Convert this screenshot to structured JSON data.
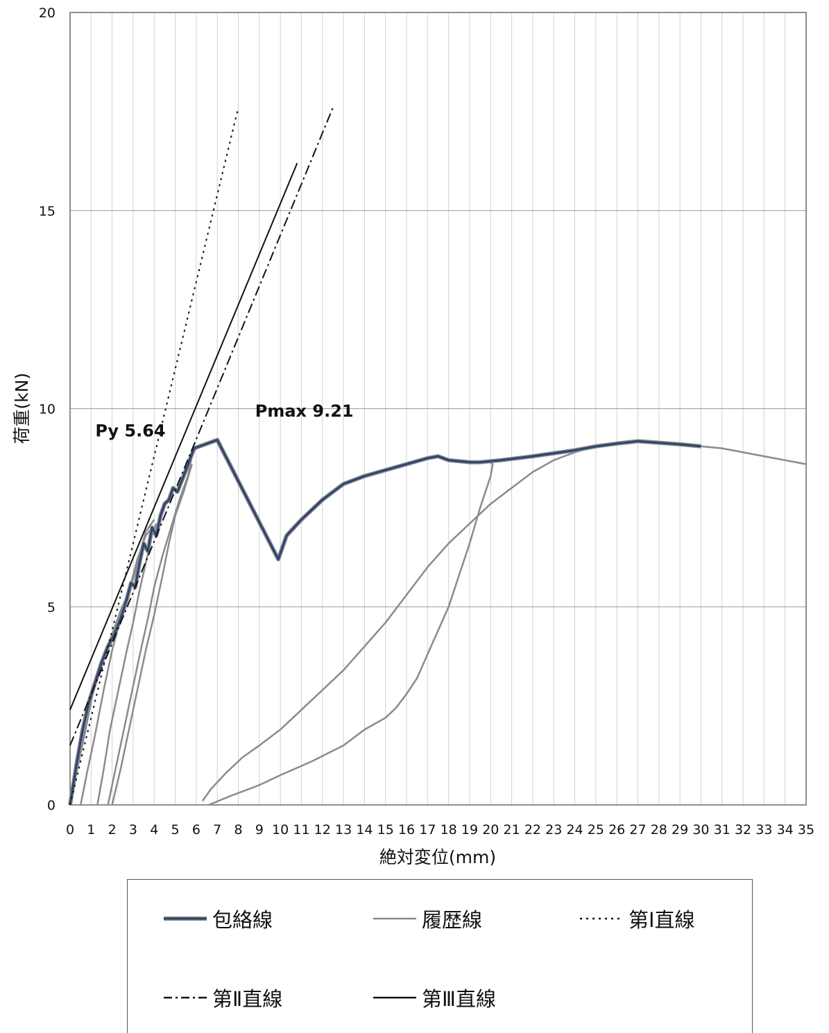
{
  "chart_data": {
    "type": "line",
    "title": "",
    "xlabel": "絶対変位(mm)",
    "ylabel": "荷重(kN)",
    "xlim": [
      0,
      35
    ],
    "ylim": [
      0,
      20
    ],
    "x_ticks": [
      0,
      1,
      2,
      3,
      4,
      5,
      6,
      7,
      8,
      9,
      10,
      11,
      12,
      13,
      14,
      15,
      16,
      17,
      18,
      19,
      20,
      21,
      22,
      23,
      24,
      25,
      26,
      27,
      28,
      29,
      30,
      31,
      32,
      33,
      34,
      35
    ],
    "y_ticks": [
      0,
      5,
      10,
      15,
      20
    ],
    "grid": {
      "horizontal": true,
      "vertical": true
    },
    "legend_position": "bottom",
    "annotations": [
      {
        "text": "Py 5.64",
        "x": 1.2,
        "y": 9.3
      },
      {
        "text": "Pmax 9.21",
        "x": 8.8,
        "y": 9.8
      }
    ],
    "series": [
      {
        "name": "履歴線",
        "style": "solid",
        "color": "#8a8a8a",
        "segments": [
          [
            [
              0,
              0
            ],
            [
              0.3,
              0.8
            ],
            [
              0.7,
              1.8
            ],
            [
              1.0,
              2.6
            ],
            [
              1.3,
              3.3
            ],
            [
              1.6,
              3.8
            ],
            [
              2.0,
              4.3
            ],
            [
              2.4,
              4.9
            ],
            [
              2.8,
              5.4
            ],
            [
              3.0,
              5.7
            ],
            [
              3.3,
              6.3
            ],
            [
              3.6,
              6.9
            ],
            [
              4.0,
              7.2
            ]
          ],
          [
            [
              0.5,
              0
            ],
            [
              0.8,
              0.8
            ],
            [
              1.2,
              1.8
            ],
            [
              1.6,
              2.9
            ],
            [
              2.0,
              3.9
            ],
            [
              2.4,
              4.7
            ],
            [
              2.8,
              5.4
            ],
            [
              3.2,
              6.2
            ],
            [
              3.6,
              6.8
            ],
            [
              3.9,
              7.0
            ]
          ],
          [
            [
              1.3,
              0
            ],
            [
              1.6,
              0.9
            ],
            [
              1.9,
              1.9
            ],
            [
              2.3,
              2.9
            ],
            [
              2.7,
              3.9
            ],
            [
              3.0,
              4.6
            ],
            [
              3.3,
              5.4
            ],
            [
              3.6,
              6.1
            ],
            [
              3.9,
              6.8
            ],
            [
              4.1,
              7.1
            ]
          ],
          [
            [
              1.8,
              0
            ],
            [
              2.2,
              1.0
            ],
            [
              2.6,
              2.0
            ],
            [
              3.0,
              3.0
            ],
            [
              3.4,
              4.0
            ],
            [
              3.7,
              4.7
            ],
            [
              4.0,
              5.5
            ],
            [
              4.4,
              6.3
            ],
            [
              4.8,
              7.0
            ],
            [
              5.2,
              7.7
            ],
            [
              5.6,
              8.3
            ],
            [
              5.8,
              8.8
            ]
          ],
          [
            [
              2.0,
              0
            ],
            [
              2.4,
              0.9
            ],
            [
              2.8,
              1.9
            ],
            [
              3.2,
              2.9
            ],
            [
              3.6,
              3.9
            ],
            [
              4.0,
              4.8
            ],
            [
              4.4,
              5.8
            ],
            [
              4.7,
              6.6
            ],
            [
              5.0,
              7.3
            ],
            [
              5.4,
              7.9
            ],
            [
              5.8,
              8.6
            ]
          ],
          [
            [
              6.3,
              0.1
            ],
            [
              6.7,
              0.4
            ],
            [
              7.4,
              0.8
            ],
            [
              8.2,
              1.2
            ],
            [
              9.0,
              1.5
            ],
            [
              10.0,
              1.9
            ],
            [
              11.0,
              2.4
            ],
            [
              12.0,
              2.9
            ],
            [
              13.0,
              3.4
            ],
            [
              14.0,
              4.0
            ],
            [
              15.0,
              4.6
            ],
            [
              16.0,
              5.3
            ],
            [
              17.0,
              6.0
            ],
            [
              18.0,
              6.6
            ],
            [
              19.0,
              7.1
            ],
            [
              20.0,
              7.6
            ],
            [
              21.0,
              8.0
            ],
            [
              22.0,
              8.4
            ],
            [
              23.0,
              8.7
            ],
            [
              24.0,
              8.9
            ],
            [
              25.0,
              9.05
            ],
            [
              26.0,
              9.15
            ],
            [
              27.0,
              9.2
            ],
            [
              28.0,
              9.15
            ],
            [
              29.0,
              9.1
            ],
            [
              30.0,
              9.05
            ],
            [
              31.0,
              9.0
            ],
            [
              32.0,
              8.9
            ],
            [
              33.0,
              8.8
            ],
            [
              34.0,
              8.7
            ],
            [
              35.0,
              8.6
            ]
          ],
          [
            [
              6.6,
              0
            ],
            [
              7.5,
              0.2
            ],
            [
              9.0,
              0.5
            ],
            [
              10.0,
              0.75
            ],
            [
              11.5,
              1.1
            ],
            [
              13.0,
              1.5
            ],
            [
              14.0,
              1.9
            ],
            [
              15.0,
              2.2
            ],
            [
              15.5,
              2.45
            ],
            [
              16.0,
              2.8
            ],
            [
              16.5,
              3.2
            ],
            [
              17.0,
              3.8
            ],
            [
              17.5,
              4.4
            ],
            [
              18.0,
              5.0
            ],
            [
              18.5,
              5.8
            ],
            [
              19.0,
              6.6
            ],
            [
              19.5,
              7.5
            ],
            [
              20.0,
              8.3
            ],
            [
              20.1,
              8.6
            ],
            [
              19.8,
              8.7
            ]
          ]
        ]
      },
      {
        "name": "包絡線",
        "style": "solid",
        "color": "#2e4470",
        "points": [
          [
            0,
            0
          ],
          [
            0.3,
            1.0
          ],
          [
            0.6,
            1.9
          ],
          [
            0.9,
            2.6
          ],
          [
            1.2,
            3.1
          ],
          [
            1.5,
            3.6
          ],
          [
            1.8,
            4.0
          ],
          [
            2.1,
            4.3
          ],
          [
            2.4,
            4.7
          ],
          [
            2.7,
            5.2
          ],
          [
            2.9,
            5.6
          ],
          [
            3.1,
            5.5
          ],
          [
            3.3,
            6.1
          ],
          [
            3.5,
            6.6
          ],
          [
            3.7,
            6.4
          ],
          [
            3.9,
            7.0
          ],
          [
            4.1,
            6.8
          ],
          [
            4.3,
            7.3
          ],
          [
            4.5,
            7.6
          ],
          [
            4.7,
            7.7
          ],
          [
            4.9,
            8.0
          ],
          [
            5.1,
            7.9
          ],
          [
            5.4,
            8.3
          ],
          [
            5.9,
            9.0
          ],
          [
            7.0,
            9.21
          ],
          [
            9.9,
            6.2
          ],
          [
            10.3,
            6.8
          ],
          [
            11.0,
            7.2
          ],
          [
            12.0,
            7.7
          ],
          [
            13.0,
            8.1
          ],
          [
            14.0,
            8.3
          ],
          [
            15.0,
            8.45
          ],
          [
            16.0,
            8.6
          ],
          [
            17.0,
            8.75
          ],
          [
            17.5,
            8.8
          ],
          [
            18.0,
            8.7
          ],
          [
            19.0,
            8.65
          ],
          [
            19.5,
            8.65
          ],
          [
            20.5,
            8.7
          ],
          [
            22.0,
            8.8
          ],
          [
            24.0,
            8.95
          ],
          [
            25.0,
            9.05
          ],
          [
            26.0,
            9.12
          ],
          [
            27.0,
            9.18
          ],
          [
            28.0,
            9.14
          ],
          [
            29.0,
            9.1
          ],
          [
            30.0,
            9.05
          ]
        ]
      },
      {
        "name": "第Ⅰ直線",
        "style": "dotted",
        "color": "#111111",
        "points": [
          [
            0,
            0
          ],
          [
            8.0,
            17.6
          ]
        ]
      },
      {
        "name": "第Ⅱ直線",
        "style": "dash-dot",
        "color": "#111111",
        "points": [
          [
            0,
            1.5
          ],
          [
            12.5,
            17.6
          ]
        ]
      },
      {
        "name": "第Ⅲ直線",
        "style": "solid-thin",
        "color": "#111111",
        "points": [
          [
            0,
            2.4
          ],
          [
            10.8,
            16.2
          ]
        ]
      }
    ]
  },
  "legend": {
    "items": [
      {
        "label": "包絡線",
        "style": "envelope"
      },
      {
        "label": "履歴線",
        "style": "history"
      },
      {
        "label": "第Ⅰ直線",
        "style": "dotted"
      },
      {
        "label": "第Ⅱ直線",
        "style": "dash-dot"
      },
      {
        "label": "第Ⅲ直線",
        "style": "solid-thin"
      }
    ]
  }
}
